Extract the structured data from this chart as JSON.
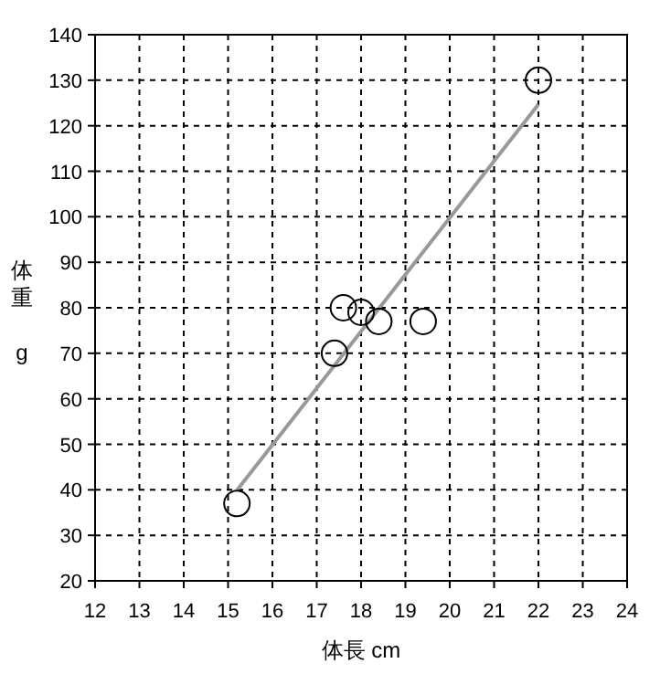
{
  "chart_data": {
    "type": "scatter",
    "xlabel": "体長 cm",
    "ylabel": "体重 g",
    "xlim": [
      12,
      24
    ],
    "xticks": [
      12,
      13,
      14,
      15,
      16,
      17,
      18,
      19,
      20,
      21,
      22,
      23,
      24
    ],
    "ylim": [
      20,
      140
    ],
    "yticks": [
      20,
      30,
      40,
      50,
      60,
      70,
      80,
      90,
      100,
      110,
      120,
      130,
      140
    ],
    "grid": true,
    "marker": "circle",
    "series": [
      {
        "color": "#000000",
        "x": [
          15.2,
          17.4,
          17.6,
          18.0,
          18.4,
          19.4,
          22.0
        ],
        "values": [
          37,
          70,
          80,
          79,
          77,
          77,
          130
        ]
      },
      {
        "type": "line",
        "color": "#999999",
        "x": [
          15.2,
          22.0
        ],
        "values": [
          39.9,
          124.7
        ],
        "marker": "none",
        "line_style": "solid"
      }
    ]
  }
}
